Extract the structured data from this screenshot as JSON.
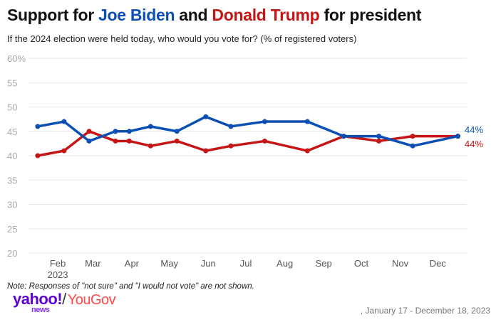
{
  "title": {
    "prefix": "Support for ",
    "biden": "Joe Biden",
    "mid": " and ",
    "trump": "Donald Trump",
    "suffix": " for president"
  },
  "subtitle": "If the 2024 election were held today, who would you vote for? (% of registered voters)",
  "note": "Note: Responses of \"not sure\" and \"I would not vote\" are not shown.",
  "logo": {
    "yahoo": "yahoo!",
    "slash": "/",
    "yougov": "YouGov",
    "news": "news"
  },
  "source": ", January 17 - December 18, 2023",
  "chart_data": {
    "type": "line",
    "title": "Support for Joe Biden and Donald Trump for president",
    "ylabel": "% of registered voters",
    "ylim": [
      20,
      60
    ],
    "yticks": [
      "20",
      "25",
      "30",
      "35",
      "40",
      "45",
      "50",
      "55",
      "60%"
    ],
    "ytick_values": [
      20,
      25,
      30,
      35,
      40,
      45,
      50,
      55,
      60
    ],
    "xticks": [
      {
        "label": "Feb",
        "day": 31,
        "sub": "2023"
      },
      {
        "label": "Mar",
        "day": 59
      },
      {
        "label": "Apr",
        "day": 90
      },
      {
        "label": "May",
        "day": 120
      },
      {
        "label": "Jun",
        "day": 151
      },
      {
        "label": "Jul",
        "day": 181
      },
      {
        "label": "Aug",
        "day": 212
      },
      {
        "label": "Sep",
        "day": 243
      },
      {
        "label": "Oct",
        "day": 273
      },
      {
        "label": "Nov",
        "day": 304
      },
      {
        "label": "Dec",
        "day": 334
      }
    ],
    "x_days": [
      15,
      36,
      56,
      77,
      88,
      105,
      126,
      149,
      169,
      196,
      230,
      259,
      287,
      314,
      350
    ],
    "series": [
      {
        "name": "Joe Biden",
        "color": "#0b4fb5",
        "values": [
          46,
          47,
          43,
          45,
          45,
          46,
          45,
          48,
          46,
          47,
          47,
          44,
          44,
          42,
          44
        ],
        "end_label": "44%"
      },
      {
        "name": "Donald Trump",
        "color": "#c61515",
        "values": [
          40,
          41,
          45,
          43,
          43,
          42,
          43,
          41,
          42,
          43,
          41,
          44,
          43,
          44,
          44
        ],
        "end_label": "44%"
      }
    ],
    "grid": true
  }
}
